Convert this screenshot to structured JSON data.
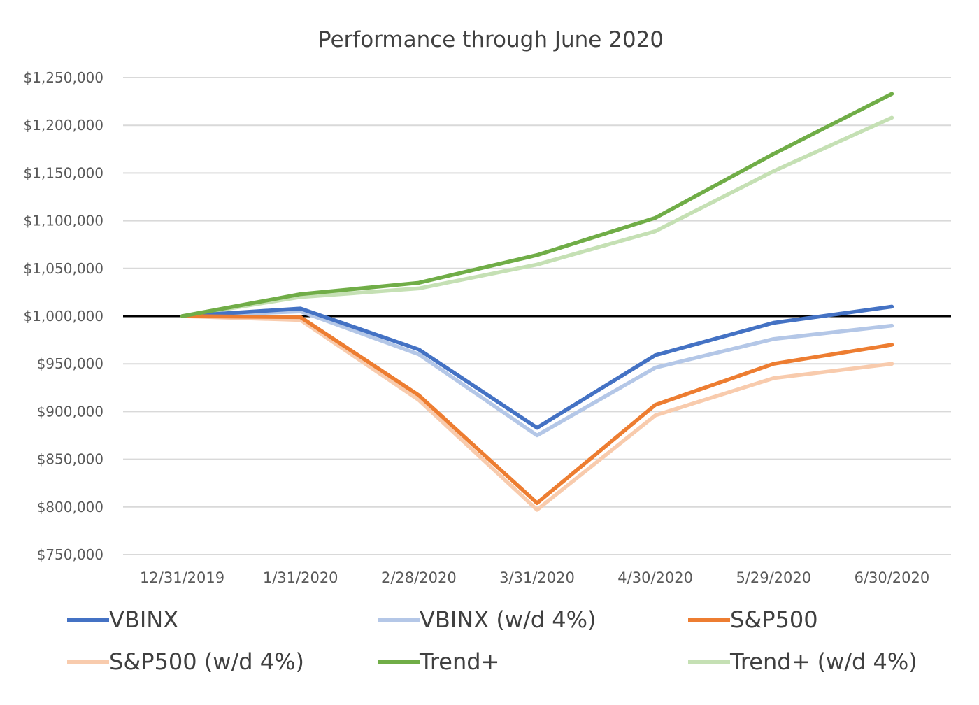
{
  "chart_data": {
    "type": "line",
    "title": "Performance through June 2020",
    "xlabel": "",
    "ylabel": "",
    "categories": [
      "12/31/2019",
      "1/31/2020",
      "2/28/2020",
      "3/31/2020",
      "4/30/2020",
      "5/29/2020",
      "6/30/2020"
    ],
    "y_ticks": [
      750000,
      800000,
      850000,
      900000,
      950000,
      1000000,
      1050000,
      1100000,
      1150000,
      1200000,
      1250000
    ],
    "y_tick_labels": [
      "$750,000",
      "$800,000",
      "$850,000",
      "$900,000",
      "$950,000",
      "$1,000,000",
      "$1,050,000",
      "$1,100,000",
      "$1,150,000",
      "$1,200,000",
      "$1,250,000"
    ],
    "ylim": [
      750000,
      1250000
    ],
    "grid": true,
    "reference_line": 1000000,
    "legend_position": "bottom",
    "series": [
      {
        "name": "VBINX",
        "color": "#4472C4",
        "values": [
          1000000,
          1008000,
          965000,
          883000,
          959000,
          993000,
          1010000
        ]
      },
      {
        "name": "VBINX (w/d 4%)",
        "color": "#B4C7E7",
        "values": [
          1000000,
          1005000,
          960000,
          875000,
          946000,
          976000,
          990000
        ]
      },
      {
        "name": "S&P500",
        "color": "#ED7D31",
        "values": [
          1000000,
          999000,
          917000,
          804000,
          907000,
          950000,
          970000
        ]
      },
      {
        "name": "S&P500 (w/d 4%)",
        "color": "#F8CBAD",
        "values": [
          1000000,
          996000,
          912000,
          797000,
          896000,
          935000,
          950000
        ]
      },
      {
        "name": "Trend+",
        "color": "#70AD47",
        "values": [
          1000000,
          1023000,
          1035000,
          1064000,
          1103000,
          1170000,
          1233000
        ]
      },
      {
        "name": "Trend+ (w/d 4%)",
        "color": "#C5E0B4",
        "values": [
          1000000,
          1020000,
          1029000,
          1054000,
          1089000,
          1152000,
          1208000
        ]
      }
    ]
  }
}
